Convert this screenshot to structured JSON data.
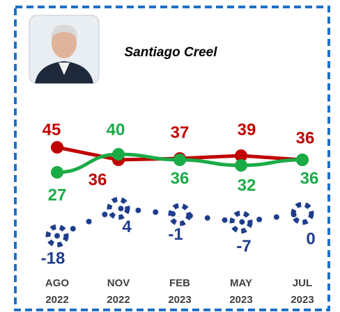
{
  "chart_data": {
    "type": "line",
    "title": "Santiago Creel",
    "categories": [
      [
        "AGO",
        "2022"
      ],
      [
        "NOV",
        "2022"
      ],
      [
        "FEB",
        "2023"
      ],
      [
        "MAY",
        "2023"
      ],
      [
        "JUL",
        "2023"
      ]
    ],
    "ylim": [
      20,
      50
    ],
    "y2lim": [
      -30,
      10
    ],
    "series": [
      {
        "color": "#c00000",
        "values": [
          45,
          36,
          37,
          39,
          36
        ]
      },
      {
        "color": "#1aab47",
        "values": [
          27,
          40,
          36,
          32,
          36
        ]
      },
      {
        "color": "#1f3d8c",
        "values": [
          -18,
          4,
          -1,
          -7,
          0
        ],
        "axis": "y2"
      }
    ]
  }
}
